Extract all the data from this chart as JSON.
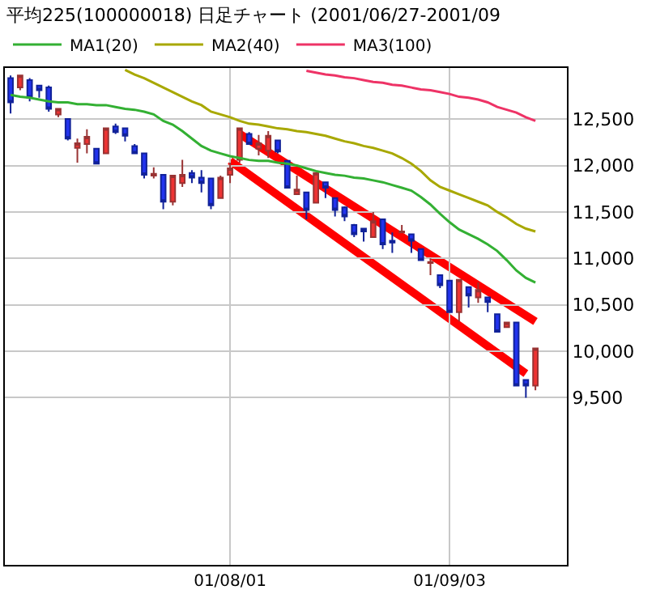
{
  "chart_data": {
    "type": "candlestick",
    "title": "平均225(100000018) 日足チャート (2001/06/27-2001/09",
    "categories": [
      null,
      null,
      null,
      null,
      null,
      null,
      null,
      null,
      null,
      null,
      null,
      null,
      null,
      null,
      null,
      null,
      null,
      null,
      null,
      null,
      null,
      null,
      null,
      "01/08/01",
      null,
      null,
      null,
      null,
      null,
      null,
      null,
      null,
      null,
      null,
      null,
      null,
      null,
      null,
      null,
      null,
      null,
      null,
      null,
      null,
      null,
      null,
      "01/09/03",
      null,
      null,
      null,
      null,
      null,
      null,
      null,
      null,
      null
    ],
    "ohlc": [
      [
        12940,
        12970,
        12560,
        12680
      ],
      [
        12840,
        12970,
        12810,
        12970
      ],
      [
        12920,
        12940,
        12690,
        12730
      ],
      [
        12860,
        12870,
        12730,
        12810
      ],
      [
        12840,
        12860,
        12580,
        12610
      ],
      [
        12550,
        12610,
        12520,
        12610
      ],
      [
        12500,
        12500,
        12270,
        12290
      ],
      [
        12190,
        12290,
        12030,
        12240
      ],
      [
        12230,
        12390,
        12130,
        12310
      ],
      [
        12180,
        12180,
        12020,
        12020
      ],
      [
        12130,
        12400,
        12130,
        12400
      ],
      [
        12420,
        12450,
        12340,
        12360
      ],
      [
        12400,
        12410,
        12260,
        12320
      ],
      [
        12210,
        12230,
        12130,
        12130
      ],
      [
        12130,
        12130,
        11860,
        11900
      ],
      [
        11890,
        11980,
        11860,
        11910
      ],
      [
        11900,
        11900,
        11530,
        11610
      ],
      [
        11610,
        11890,
        11570,
        11890
      ],
      [
        11810,
        12060,
        11770,
        11900
      ],
      [
        11920,
        11950,
        11810,
        11870
      ],
      [
        11870,
        11950,
        11710,
        11810
      ],
      [
        11860,
        11860,
        11530,
        11570
      ],
      [
        11650,
        11890,
        11650,
        11870
      ],
      [
        11900,
        12030,
        11810,
        11970
      ],
      [
        12060,
        12410,
        12030,
        12400
      ],
      [
        12340,
        12360,
        12230,
        12230
      ],
      [
        12180,
        12330,
        12110,
        12240
      ],
      [
        12160,
        12370,
        12080,
        12320
      ],
      [
        12270,
        12280,
        12130,
        12150
      ],
      [
        12050,
        12050,
        11760,
        11760
      ],
      [
        11690,
        11890,
        11690,
        11740
      ],
      [
        11710,
        11710,
        11420,
        11520
      ],
      [
        11600,
        11920,
        11600,
        11920
      ],
      [
        11820,
        11820,
        11650,
        11760
      ],
      [
        11650,
        11650,
        11450,
        11520
      ],
      [
        11550,
        11560,
        11400,
        11450
      ],
      [
        11360,
        11370,
        11230,
        11260
      ],
      [
        11320,
        11320,
        11180,
        11290
      ],
      [
        11230,
        11500,
        11230,
        11400
      ],
      [
        11420,
        11420,
        11100,
        11150
      ],
      [
        11190,
        11280,
        11060,
        11170
      ],
      [
        11280,
        11360,
        11270,
        11290
      ],
      [
        11260,
        11260,
        11060,
        11190
      ],
      [
        11100,
        11100,
        10980,
        10980
      ],
      [
        10950,
        11000,
        10820,
        10960
      ],
      [
        10820,
        10820,
        10680,
        10710
      ],
      [
        10760,
        10760,
        10420,
        10420
      ],
      [
        10420,
        10770,
        10320,
        10770
      ],
      [
        10690,
        10690,
        10470,
        10600
      ],
      [
        10580,
        10740,
        10520,
        10660
      ],
      [
        10580,
        10580,
        10420,
        10530
      ],
      [
        10400,
        10400,
        10210,
        10210
      ],
      [
        10260,
        10310,
        10250,
        10310
      ],
      [
        10310,
        10310,
        9630,
        9630
      ],
      [
        9690,
        9690,
        9500,
        9630
      ],
      [
        9630,
        10030,
        9580,
        10030
      ]
    ],
    "series": [
      {
        "name": "MA1(20)",
        "type": "line",
        "color": "#33b033",
        "values": [
          12760,
          12740,
          12730,
          12710,
          12690,
          12680,
          12680,
          12660,
          12660,
          12650,
          12650,
          12630,
          12610,
          12600,
          12580,
          12550,
          12480,
          12440,
          12370,
          12290,
          12210,
          12160,
          12130,
          12100,
          12080,
          12060,
          12050,
          12050,
          12030,
          12020,
          12000,
          11970,
          11940,
          11920,
          11900,
          11890,
          11870,
          11860,
          11840,
          11820,
          11790,
          11760,
          11730,
          11660,
          11580,
          11480,
          11390,
          11310,
          11260,
          11210,
          11150,
          11080,
          10980,
          10870,
          10790,
          10740
        ]
      },
      {
        "name": "MA2(40)",
        "type": "line",
        "color": "#a8a800",
        "values": [
          null,
          null,
          null,
          null,
          null,
          null,
          null,
          null,
          null,
          null,
          null,
          null,
          13030,
          12980,
          12940,
          12890,
          12840,
          12790,
          12740,
          12690,
          12650,
          12580,
          12550,
          12520,
          12480,
          12450,
          12440,
          12420,
          12400,
          12390,
          12370,
          12360,
          12340,
          12320,
          12290,
          12260,
          12240,
          12210,
          12190,
          12160,
          12130,
          12080,
          12020,
          11940,
          11840,
          11770,
          11730,
          11690,
          11650,
          11610,
          11570,
          11500,
          11440,
          11370,
          11320,
          11290
        ]
      },
      {
        "name": "MA3(100)",
        "type": "line",
        "color": "#ee3366",
        "values": [
          null,
          null,
          null,
          null,
          null,
          null,
          null,
          null,
          null,
          null,
          null,
          null,
          null,
          null,
          null,
          null,
          null,
          null,
          null,
          null,
          null,
          null,
          null,
          null,
          null,
          null,
          null,
          null,
          null,
          null,
          null,
          13020,
          13000,
          12980,
          12970,
          12950,
          12940,
          12920,
          12900,
          12890,
          12870,
          12860,
          12840,
          12820,
          12810,
          12790,
          12770,
          12740,
          12730,
          12710,
          12680,
          12630,
          12600,
          12570,
          12520,
          12480
        ]
      },
      {
        "type": "line",
        "color": "#ff0000",
        "values": [
          null,
          null,
          null,
          null,
          null,
          null,
          null,
          null,
          null,
          null,
          null,
          null,
          null,
          null,
          null,
          null,
          null,
          null,
          null,
          null,
          null,
          null,
          null,
          null,
          12340,
          null,
          null,
          null,
          null,
          null,
          null,
          null,
          null,
          null,
          null,
          null,
          null,
          null,
          null,
          null,
          null,
          null,
          null,
          null,
          null,
          null,
          null,
          null,
          null,
          null,
          null,
          null,
          null,
          null,
          null,
          10320
        ]
      },
      {
        "type": "line",
        "color": "#ff0000",
        "values": [
          null,
          null,
          null,
          null,
          null,
          null,
          null,
          null,
          null,
          null,
          null,
          null,
          null,
          null,
          null,
          null,
          null,
          null,
          null,
          null,
          null,
          null,
          null,
          12050,
          null,
          null,
          null,
          null,
          null,
          null,
          null,
          null,
          null,
          null,
          null,
          null,
          null,
          null,
          null,
          null,
          null,
          null,
          null,
          null,
          null,
          null,
          null,
          null,
          null,
          null,
          null,
          null,
          null,
          null,
          9760,
          null
        ]
      }
    ],
    "ylim": [
      7700,
      13050
    ],
    "yticks": [
      {
        "value": 9500,
        "label": "9,500"
      },
      {
        "value": 10000,
        "label": "10,000"
      },
      {
        "value": 10500,
        "label": "10,500"
      },
      {
        "value": 11000,
        "label": "11,000"
      },
      {
        "value": 11500,
        "label": "11,500"
      },
      {
        "value": 12000,
        "label": "12,000"
      },
      {
        "value": 12500,
        "label": "12,500"
      }
    ],
    "grid": true,
    "legend": "top left"
  }
}
